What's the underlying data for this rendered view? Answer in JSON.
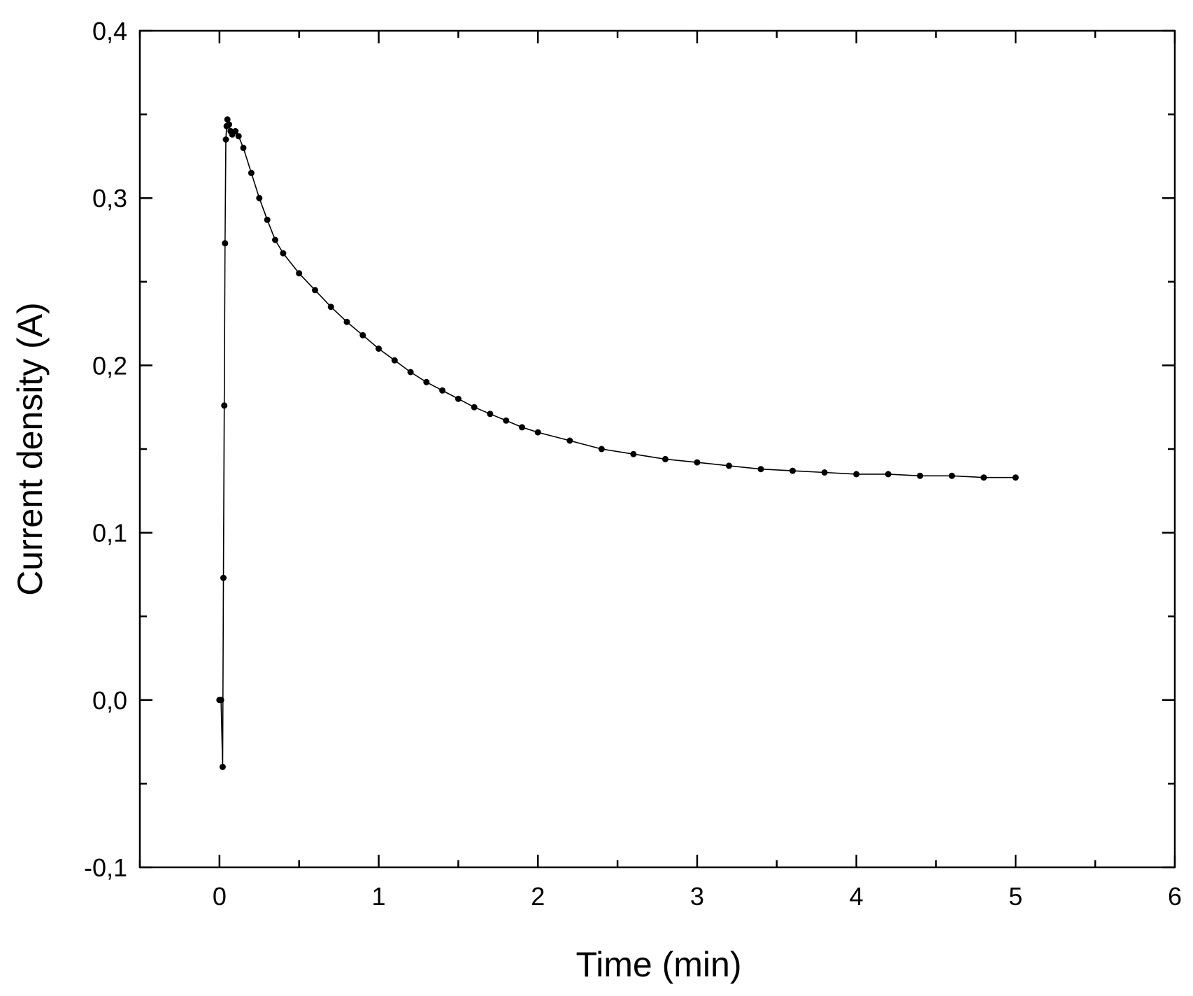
{
  "chart_data": {
    "type": "scatter",
    "title": "",
    "xlabel": "Time (min)",
    "ylabel": "Current density (A)",
    "xlim": [
      -0.5,
      6
    ],
    "ylim": [
      -0.1,
      0.4
    ],
    "xticks": [
      0,
      1,
      2,
      3,
      4,
      5,
      6
    ],
    "xtick_labels": [
      "0",
      "1",
      "2",
      "3",
      "4",
      "5",
      "6"
    ],
    "yticks": [
      -0.1,
      0.0,
      0.1,
      0.2,
      0.3,
      0.4
    ],
    "ytick_labels": [
      "-0,1",
      "0,0",
      "0,1",
      "0,2",
      "0,3",
      "0,4"
    ],
    "grid": false,
    "marker": "filled-circle",
    "connected": true,
    "color": "#000000",
    "series": [
      {
        "x": [
          0.0,
          0.01,
          0.02,
          0.025,
          0.03,
          0.035,
          0.04,
          0.045,
          0.05,
          0.06,
          0.07,
          0.08,
          0.1,
          0.12,
          0.15,
          0.2,
          0.25,
          0.3,
          0.35,
          0.4,
          0.5,
          0.6,
          0.7,
          0.8,
          0.9,
          1.0,
          1.1,
          1.2,
          1.3,
          1.4,
          1.5,
          1.6,
          1.7,
          1.8,
          1.9,
          2.0,
          2.2,
          2.4,
          2.6,
          2.8,
          3.0,
          3.2,
          3.4,
          3.6,
          3.8,
          4.0,
          4.2,
          4.4,
          4.6,
          4.8,
          5.0
        ],
        "y": [
          0.0,
          0.0,
          -0.04,
          0.073,
          0.176,
          0.273,
          0.335,
          0.343,
          0.347,
          0.344,
          0.34,
          0.338,
          0.34,
          0.337,
          0.33,
          0.315,
          0.3,
          0.287,
          0.275,
          0.267,
          0.255,
          0.245,
          0.235,
          0.226,
          0.218,
          0.21,
          0.203,
          0.196,
          0.19,
          0.185,
          0.18,
          0.175,
          0.171,
          0.167,
          0.163,
          0.16,
          0.155,
          0.15,
          0.147,
          0.144,
          0.142,
          0.14,
          0.138,
          0.137,
          0.136,
          0.135,
          0.135,
          0.134,
          0.134,
          0.133,
          0.133
        ]
      }
    ]
  }
}
